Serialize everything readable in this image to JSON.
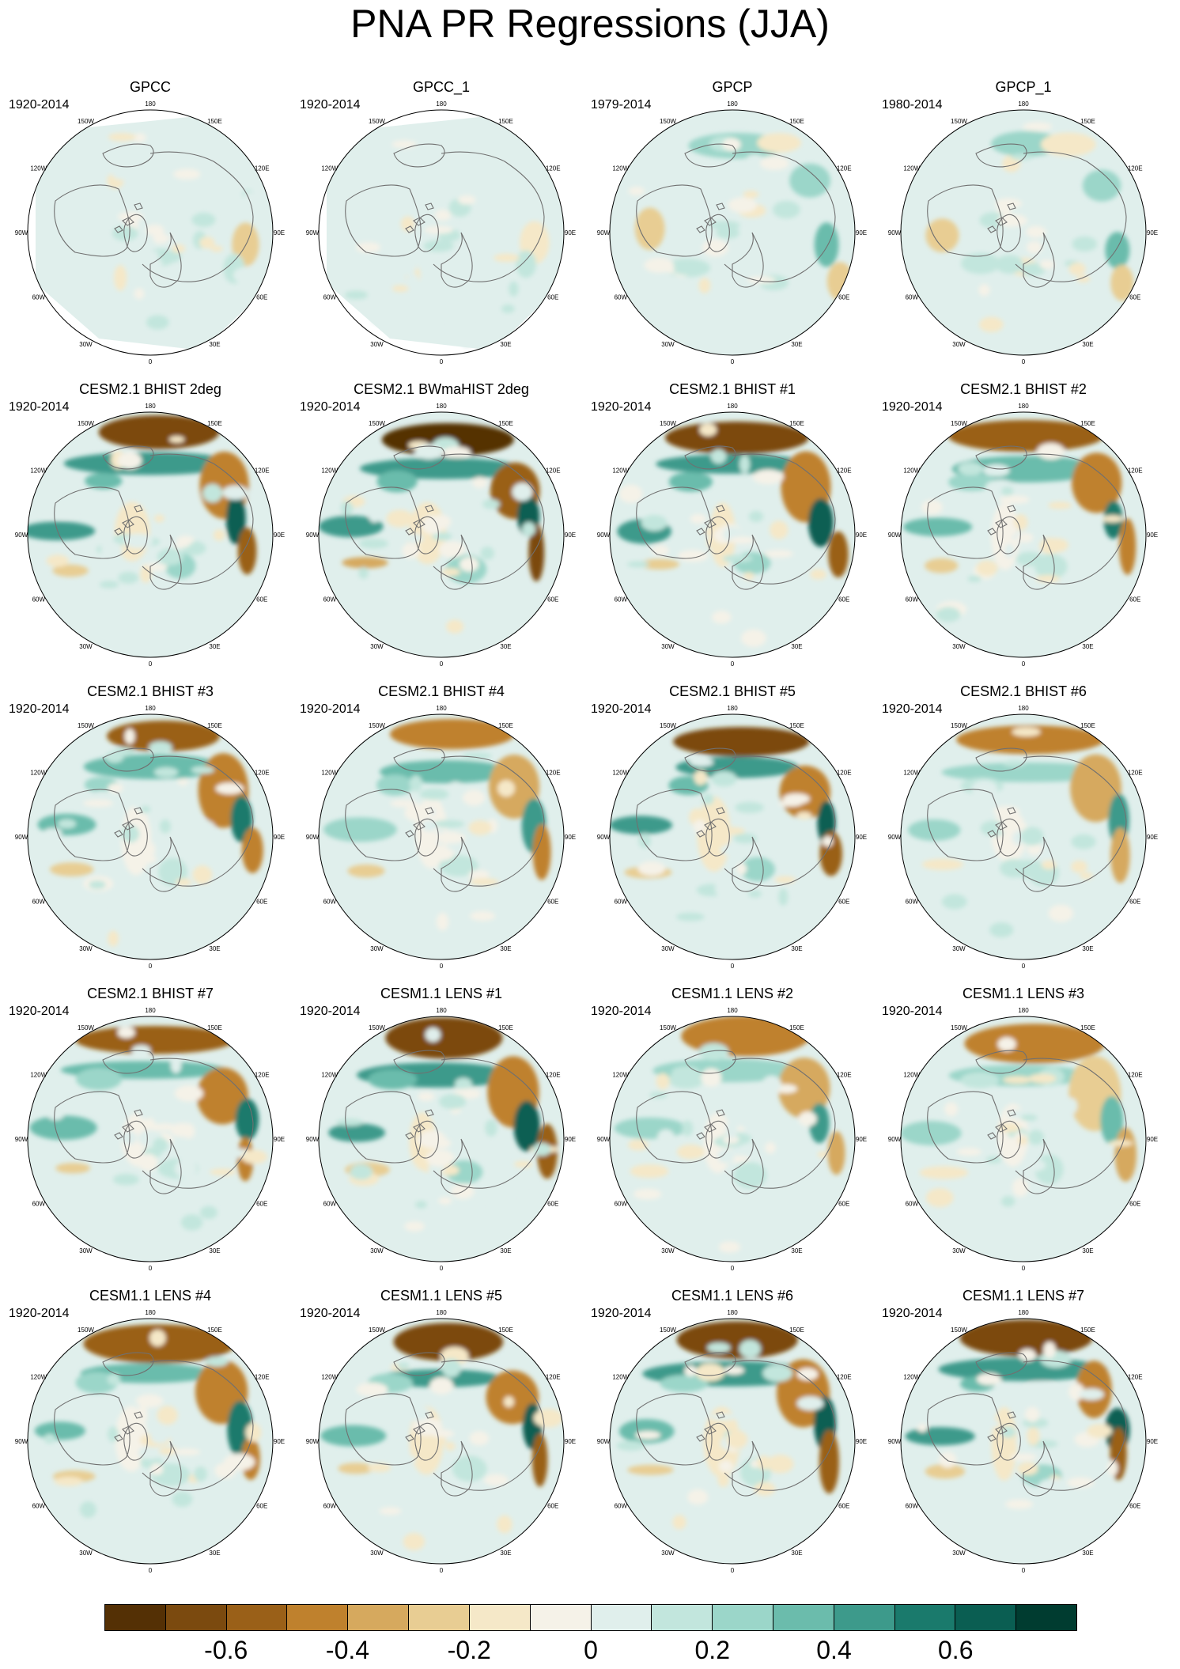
{
  "title": "PNA PR Regressions (JJA)",
  "lon_labels": [
    "180",
    "150E",
    "120E",
    "90E",
    "60E",
    "30E",
    "0",
    "30W",
    "60W",
    "90W",
    "120W",
    "150W"
  ],
  "panels": [
    {
      "title": "GPCC",
      "years": "1920-2014",
      "kind": "gpcc",
      "amp": 0.4
    },
    {
      "title": "GPCC_1",
      "years": "1920-2014",
      "kind": "gpcc",
      "amp": 0.35
    },
    {
      "title": "GPCP",
      "years": "1979-2014",
      "kind": "gpcp",
      "amp": 0.5
    },
    {
      "title": "GPCP_1",
      "years": "1980-2014",
      "kind": "gpcp",
      "amp": 0.5
    },
    {
      "title": "CESM2.1 BHIST 2deg",
      "years": "1920-2014",
      "kind": "model",
      "amp": 0.85
    },
    {
      "title": "CESM2.1 BWmaHIST 2deg",
      "years": "1920-2014",
      "kind": "model",
      "amp": 0.9
    },
    {
      "title": "CESM2.1 BHIST #1",
      "years": "1920-2014",
      "kind": "model",
      "amp": 0.85
    },
    {
      "title": "CESM2.1 BHIST #2",
      "years": "1920-2014",
      "kind": "model",
      "amp": 0.7
    },
    {
      "title": "CESM2.1 BHIST #3",
      "years": "1920-2014",
      "kind": "model",
      "amp": 0.7
    },
    {
      "title": "CESM2.1 BHIST #4",
      "years": "1920-2014",
      "kind": "model",
      "amp": 0.6
    },
    {
      "title": "CESM2.1 BHIST #5",
      "years": "1920-2014",
      "kind": "model",
      "amp": 0.85
    },
    {
      "title": "CESM2.1 BHIST #6",
      "years": "1920-2014",
      "kind": "model",
      "amp": 0.55
    },
    {
      "title": "CESM2.1 BHIST #7",
      "years": "1920-2014",
      "kind": "model",
      "amp": 0.7
    },
    {
      "title": "CESM1.1 LENS #1",
      "years": "1920-2014",
      "kind": "model",
      "amp": 0.85
    },
    {
      "title": "CESM1.1 LENS #2",
      "years": "1920-2014",
      "kind": "model",
      "amp": 0.55
    },
    {
      "title": "CESM1.1 LENS #3",
      "years": "1920-2014",
      "kind": "model",
      "amp": 0.5
    },
    {
      "title": "CESM1.1 LENS #4",
      "years": "1920-2014",
      "kind": "model",
      "amp": 0.7
    },
    {
      "title": "CESM1.1 LENS #5",
      "years": "1920-2014",
      "kind": "model",
      "amp": 0.8
    },
    {
      "title": "CESM1.1 LENS #6",
      "years": "1920-2014",
      "kind": "model",
      "amp": 0.8
    },
    {
      "title": "CESM1.1 LENS #7",
      "years": "1920-2014",
      "kind": "model",
      "amp": 0.85
    }
  ],
  "colorbar": {
    "colors": [
      "#543005",
      "#7b4a0f",
      "#9a6018",
      "#bf812d",
      "#d6a95e",
      "#e8cd93",
      "#f5e8c8",
      "#f5f2e8",
      "#e0efec",
      "#c2e6dd",
      "#9bd6c9",
      "#6bbcac",
      "#3d9a8b",
      "#1a7a6c",
      "#0a5e52",
      "#003c30"
    ],
    "labels": [
      "-0.6",
      "-0.4",
      "-0.2",
      "0",
      "0.2",
      "0.4",
      "0.6"
    ],
    "label_values": [
      -0.6,
      -0.4,
      -0.2,
      0,
      0.2,
      0.4,
      0.6
    ],
    "range": [
      -0.8,
      0.8
    ]
  }
}
